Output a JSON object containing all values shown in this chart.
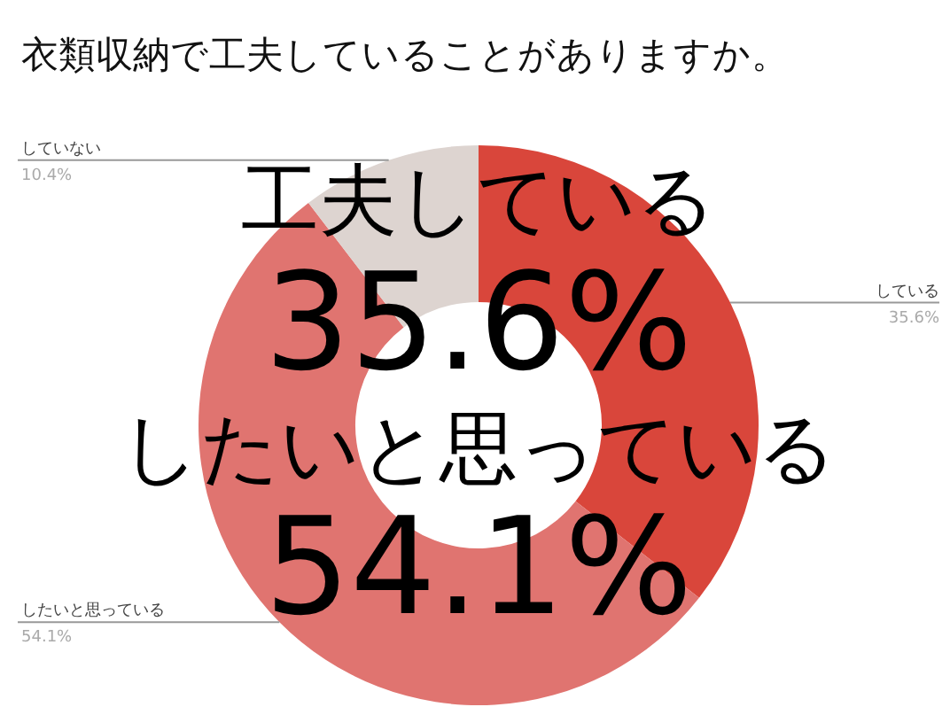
{
  "chart_data": {
    "type": "donut",
    "title": "衣類収納で工夫していることがありますか。",
    "categories": [
      "している",
      "したいと思っている",
      "していない"
    ],
    "values": [
      35.6,
      54.1,
      10.4
    ],
    "value_labels": [
      "35.6%",
      "54.1%",
      "10.4%"
    ],
    "colors": [
      "#d9463b",
      "#e07470",
      "#ddd4d0"
    ],
    "annotations": [
      "工夫している",
      "35.6%",
      "したいと思っている",
      "54.1%"
    ]
  }
}
